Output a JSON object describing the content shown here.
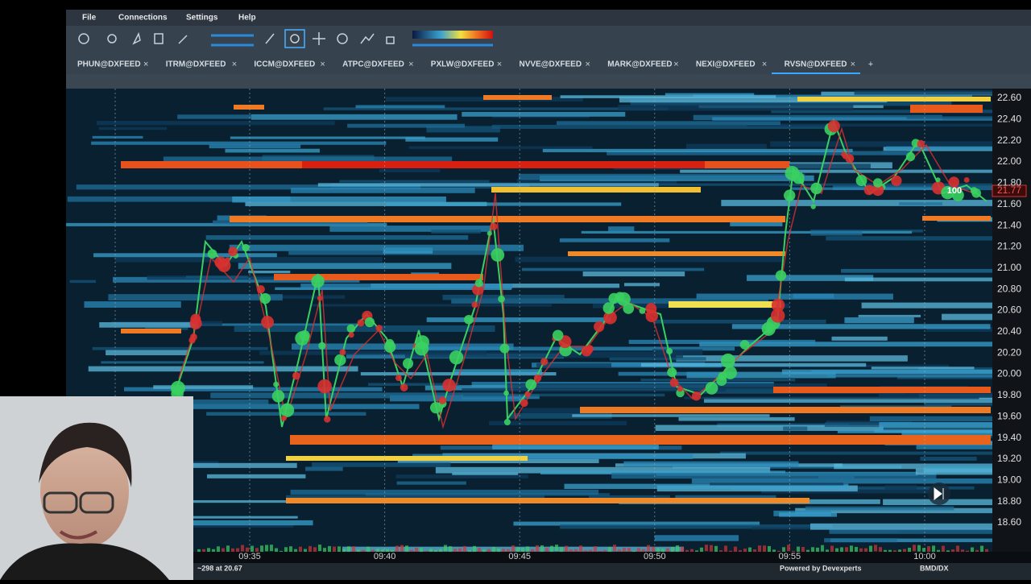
{
  "menu": [
    "File",
    "Connections",
    "Settings",
    "Help"
  ],
  "tabs": [
    "PHUN@DXFEED",
    "ITRM@DXFEED",
    "ICCM@DXFEED",
    "ATPC@DXFEED",
    "PXLW@DXFEED",
    "NVVE@DXFEED",
    "MARK@DXFEED",
    "NEXI@DXFEED",
    "RVSN@DXFEED"
  ],
  "price_axis": {
    "labels": [
      "22.60",
      "22.40",
      "22.20",
      "22.00",
      "21.80",
      "21.60",
      "21.40",
      "21.20",
      "21.00",
      "20.80",
      "20.60",
      "20.40",
      "20.20",
      "20.00",
      "19.80",
      "19.60",
      "19.40",
      "19.20",
      "19.00",
      "18.80",
      "18.60"
    ],
    "last_price": "21.77"
  },
  "time_axis": [
    "09:35",
    "09:40",
    "09:45",
    "09:50",
    "09:55",
    "10:00"
  ],
  "annotations": {
    "order_size": "100"
  },
  "status": {
    "left": "~298 at 20.67",
    "center": "Powered by Devexperts",
    "right": "BMD/DX"
  }
}
